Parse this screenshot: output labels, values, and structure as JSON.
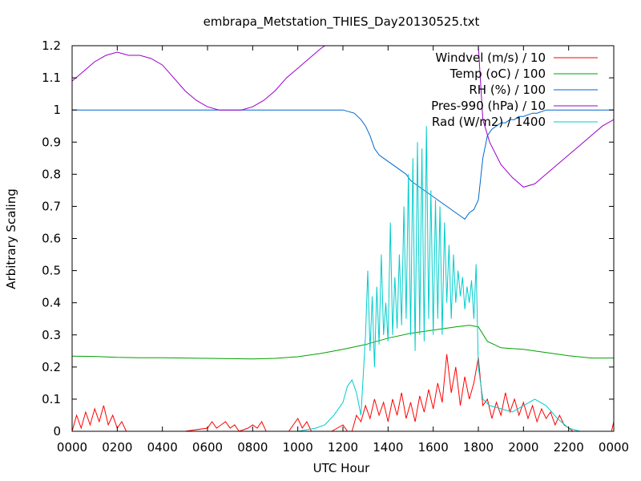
{
  "chart_data": {
    "type": "line",
    "title": "embrapa_Metstation_THIES_Day20130525.txt",
    "xlabel": "UTC Hour",
    "ylabel": "Arbitrary Scaling",
    "xlim": [
      0,
      2400
    ],
    "ylim": [
      0,
      1.2
    ],
    "x_ticks": [
      "0000",
      "0200",
      "0400",
      "0600",
      "0800",
      "1000",
      "1200",
      "1400",
      "1600",
      "1800",
      "2000",
      "2200",
      "0000"
    ],
    "y_ticks": [
      "0",
      "0.1",
      "0.2",
      "0.3",
      "0.4",
      "0.5",
      "0.6",
      "0.7",
      "0.8",
      "0.9",
      "1",
      "1.1",
      "1.2"
    ],
    "grid": false,
    "legend_position": "top-right",
    "series": [
      {
        "name": "Windvel (m/s) / 10",
        "color": "#ff0000",
        "points": [
          [
            0,
            0
          ],
          [
            20,
            0.05
          ],
          [
            40,
            0.01
          ],
          [
            60,
            0.06
          ],
          [
            80,
            0.02
          ],
          [
            100,
            0.07
          ],
          [
            120,
            0.03
          ],
          [
            140,
            0.08
          ],
          [
            160,
            0.02
          ],
          [
            180,
            0.05
          ],
          [
            200,
            0.01
          ],
          [
            220,
            0.03
          ],
          [
            240,
            0
          ],
          [
            300,
            0
          ],
          [
            400,
            0
          ],
          [
            500,
            0
          ],
          [
            600,
            0.01
          ],
          [
            620,
            0.03
          ],
          [
            640,
            0.01
          ],
          [
            660,
            0.02
          ],
          [
            680,
            0.03
          ],
          [
            700,
            0.01
          ],
          [
            720,
            0.02
          ],
          [
            740,
            0
          ],
          [
            780,
            0.01
          ],
          [
            800,
            0.02
          ],
          [
            820,
            0.01
          ],
          [
            840,
            0.03
          ],
          [
            860,
            0
          ],
          [
            900,
            0
          ],
          [
            960,
            0
          ],
          [
            1000,
            0.04
          ],
          [
            1020,
            0.01
          ],
          [
            1040,
            0.03
          ],
          [
            1060,
            0
          ],
          [
            1100,
            0
          ],
          [
            1150,
            0
          ],
          [
            1200,
            0.02
          ],
          [
            1220,
            0
          ],
          [
            1240,
            0
          ],
          [
            1260,
            0.05
          ],
          [
            1280,
            0.03
          ],
          [
            1300,
            0.08
          ],
          [
            1320,
            0.04
          ],
          [
            1340,
            0.1
          ],
          [
            1360,
            0.05
          ],
          [
            1380,
            0.09
          ],
          [
            1400,
            0.03
          ],
          [
            1420,
            0.1
          ],
          [
            1440,
            0.05
          ],
          [
            1460,
            0.12
          ],
          [
            1480,
            0.04
          ],
          [
            1500,
            0.09
          ],
          [
            1520,
            0.03
          ],
          [
            1540,
            0.11
          ],
          [
            1560,
            0.06
          ],
          [
            1580,
            0.13
          ],
          [
            1600,
            0.07
          ],
          [
            1620,
            0.15
          ],
          [
            1640,
            0.09
          ],
          [
            1660,
            0.24
          ],
          [
            1680,
            0.12
          ],
          [
            1700,
            0.2
          ],
          [
            1720,
            0.08
          ],
          [
            1740,
            0.17
          ],
          [
            1760,
            0.1
          ],
          [
            1780,
            0.15
          ],
          [
            1800,
            0.23
          ],
          [
            1820,
            0.08
          ],
          [
            1840,
            0.1
          ],
          [
            1860,
            0.04
          ],
          [
            1880,
            0.09
          ],
          [
            1900,
            0.05
          ],
          [
            1920,
            0.12
          ],
          [
            1940,
            0.06
          ],
          [
            1960,
            0.1
          ],
          [
            1980,
            0.05
          ],
          [
            2000,
            0.09
          ],
          [
            2020,
            0.04
          ],
          [
            2040,
            0.08
          ],
          [
            2060,
            0.03
          ],
          [
            2080,
            0.07
          ],
          [
            2100,
            0.04
          ],
          [
            2120,
            0.06
          ],
          [
            2140,
            0.02
          ],
          [
            2160,
            0.05
          ],
          [
            2180,
            0.02
          ],
          [
            2200,
            0.01
          ],
          [
            2220,
            0
          ],
          [
            2300,
            0
          ],
          [
            2390,
            0
          ],
          [
            2400,
            0.03
          ]
        ]
      },
      {
        "name": "Temp (oC) / 100",
        "color": "#00a000",
        "points": [
          [
            0,
            0.234
          ],
          [
            100,
            0.233
          ],
          [
            200,
            0.23
          ],
          [
            300,
            0.229
          ],
          [
            400,
            0.229
          ],
          [
            500,
            0.228
          ],
          [
            600,
            0.227
          ],
          [
            700,
            0.226
          ],
          [
            800,
            0.225
          ],
          [
            900,
            0.227
          ],
          [
            1000,
            0.232
          ],
          [
            1100,
            0.242
          ],
          [
            1200,
            0.255
          ],
          [
            1300,
            0.27
          ],
          [
            1400,
            0.29
          ],
          [
            1500,
            0.305
          ],
          [
            1600,
            0.315
          ],
          [
            1700,
            0.325
          ],
          [
            1760,
            0.33
          ],
          [
            1800,
            0.325
          ],
          [
            1840,
            0.28
          ],
          [
            1900,
            0.26
          ],
          [
            2000,
            0.255
          ],
          [
            2100,
            0.245
          ],
          [
            2200,
            0.235
          ],
          [
            2300,
            0.228
          ],
          [
            2400,
            0.228
          ]
        ]
      },
      {
        "name": "RH (%) / 100",
        "color": "#0066cc",
        "points": [
          [
            0,
            1
          ],
          [
            200,
            1
          ],
          [
            400,
            1
          ],
          [
            600,
            1
          ],
          [
            800,
            1
          ],
          [
            1000,
            1
          ],
          [
            1200,
            1
          ],
          [
            1250,
            0.99
          ],
          [
            1280,
            0.97
          ],
          [
            1300,
            0.95
          ],
          [
            1320,
            0.92
          ],
          [
            1340,
            0.88
          ],
          [
            1360,
            0.86
          ],
          [
            1380,
            0.85
          ],
          [
            1400,
            0.84
          ],
          [
            1420,
            0.83
          ],
          [
            1440,
            0.82
          ],
          [
            1460,
            0.81
          ],
          [
            1480,
            0.8
          ],
          [
            1500,
            0.78
          ],
          [
            1520,
            0.77
          ],
          [
            1540,
            0.76
          ],
          [
            1560,
            0.75
          ],
          [
            1580,
            0.74
          ],
          [
            1600,
            0.73
          ],
          [
            1620,
            0.72
          ],
          [
            1640,
            0.71
          ],
          [
            1660,
            0.7
          ],
          [
            1680,
            0.69
          ],
          [
            1700,
            0.68
          ],
          [
            1720,
            0.67
          ],
          [
            1740,
            0.66
          ],
          [
            1760,
            0.68
          ],
          [
            1780,
            0.69
          ],
          [
            1800,
            0.72
          ],
          [
            1820,
            0.85
          ],
          [
            1840,
            0.92
          ],
          [
            1860,
            0.94
          ],
          [
            1880,
            0.95
          ],
          [
            1900,
            0.96
          ],
          [
            1920,
            0.96
          ],
          [
            1940,
            0.97
          ],
          [
            1960,
            0.97
          ],
          [
            1980,
            0.98
          ],
          [
            2000,
            0.98
          ],
          [
            2020,
            0.985
          ],
          [
            2040,
            0.99
          ],
          [
            2060,
            0.99
          ],
          [
            2100,
            1
          ],
          [
            2200,
            1
          ],
          [
            2300,
            1
          ],
          [
            2400,
            1
          ]
        ]
      },
      {
        "name": "Pres-990 (hPa) / 10",
        "color": "#9900cc",
        "points": [
          [
            0,
            1.09
          ],
          [
            50,
            1.12
          ],
          [
            100,
            1.15
          ],
          [
            150,
            1.17
          ],
          [
            200,
            1.18
          ],
          [
            250,
            1.17
          ],
          [
            300,
            1.17
          ],
          [
            350,
            1.16
          ],
          [
            400,
            1.14
          ],
          [
            450,
            1.1
          ],
          [
            500,
            1.06
          ],
          [
            550,
            1.03
          ],
          [
            600,
            1.01
          ],
          [
            650,
            1
          ],
          [
            700,
            1
          ],
          [
            750,
            1
          ],
          [
            800,
            1.01
          ],
          [
            850,
            1.03
          ],
          [
            900,
            1.06
          ],
          [
            950,
            1.1
          ],
          [
            1000,
            1.13
          ],
          [
            1050,
            1.16
          ],
          [
            1100,
            1.19
          ],
          [
            1120,
            1.2
          ],
          [
            1800,
            1.2
          ],
          [
            1820,
            0.97
          ],
          [
            1850,
            0.9
          ],
          [
            1900,
            0.83
          ],
          [
            1950,
            0.79
          ],
          [
            2000,
            0.76
          ],
          [
            2050,
            0.77
          ],
          [
            2100,
            0.8
          ],
          [
            2150,
            0.83
          ],
          [
            2200,
            0.86
          ],
          [
            2250,
            0.89
          ],
          [
            2300,
            0.92
          ],
          [
            2350,
            0.95
          ],
          [
            2400,
            0.97
          ]
        ]
      },
      {
        "name": "Rad (W/m2) / 1400",
        "color": "#00cccc",
        "points": [
          [
            0,
            0
          ],
          [
            1000,
            0
          ],
          [
            1080,
            0.01
          ],
          [
            1120,
            0.02
          ],
          [
            1160,
            0.05
          ],
          [
            1200,
            0.09
          ],
          [
            1220,
            0.14
          ],
          [
            1240,
            0.16
          ],
          [
            1260,
            0.12
          ],
          [
            1280,
            0.05
          ],
          [
            1300,
            0.3
          ],
          [
            1310,
            0.5
          ],
          [
            1320,
            0.25
          ],
          [
            1330,
            0.42
          ],
          [
            1340,
            0.2
          ],
          [
            1350,
            0.45
          ],
          [
            1360,
            0.27
          ],
          [
            1370,
            0.55
          ],
          [
            1380,
            0.3
          ],
          [
            1390,
            0.4
          ],
          [
            1400,
            0.28
          ],
          [
            1410,
            0.65
          ],
          [
            1420,
            0.3
          ],
          [
            1430,
            0.48
          ],
          [
            1440,
            0.32
          ],
          [
            1450,
            0.55
          ],
          [
            1460,
            0.33
          ],
          [
            1470,
            0.7
          ],
          [
            1480,
            0.35
          ],
          [
            1490,
            0.8
          ],
          [
            1500,
            0.3
          ],
          [
            1510,
            0.85
          ],
          [
            1520,
            0.25
          ],
          [
            1530,
            0.9
          ],
          [
            1540,
            0.3
          ],
          [
            1550,
            0.88
          ],
          [
            1560,
            0.28
          ],
          [
            1570,
            0.95
          ],
          [
            1580,
            0.35
          ],
          [
            1590,
            0.75
          ],
          [
            1600,
            0.3
          ],
          [
            1610,
            0.72
          ],
          [
            1620,
            0.35
          ],
          [
            1630,
            0.7
          ],
          [
            1640,
            0.3
          ],
          [
            1650,
            0.65
          ],
          [
            1660,
            0.4
          ],
          [
            1670,
            0.58
          ],
          [
            1680,
            0.35
          ],
          [
            1690,
            0.55
          ],
          [
            1700,
            0.4
          ],
          [
            1710,
            0.5
          ],
          [
            1720,
            0.42
          ],
          [
            1730,
            0.48
          ],
          [
            1740,
            0.38
          ],
          [
            1750,
            0.45
          ],
          [
            1760,
            0.4
          ],
          [
            1770,
            0.47
          ],
          [
            1780,
            0.35
          ],
          [
            1790,
            0.52
          ],
          [
            1800,
            0.2
          ],
          [
            1820,
            0.1
          ],
          [
            1850,
            0.08
          ],
          [
            1900,
            0.07
          ],
          [
            1950,
            0.06
          ],
          [
            2000,
            0.08
          ],
          [
            2050,
            0.1
          ],
          [
            2100,
            0.08
          ],
          [
            2150,
            0.04
          ],
          [
            2200,
            0.01
          ],
          [
            2250,
            0
          ],
          [
            2400,
            0
          ]
        ]
      }
    ]
  }
}
